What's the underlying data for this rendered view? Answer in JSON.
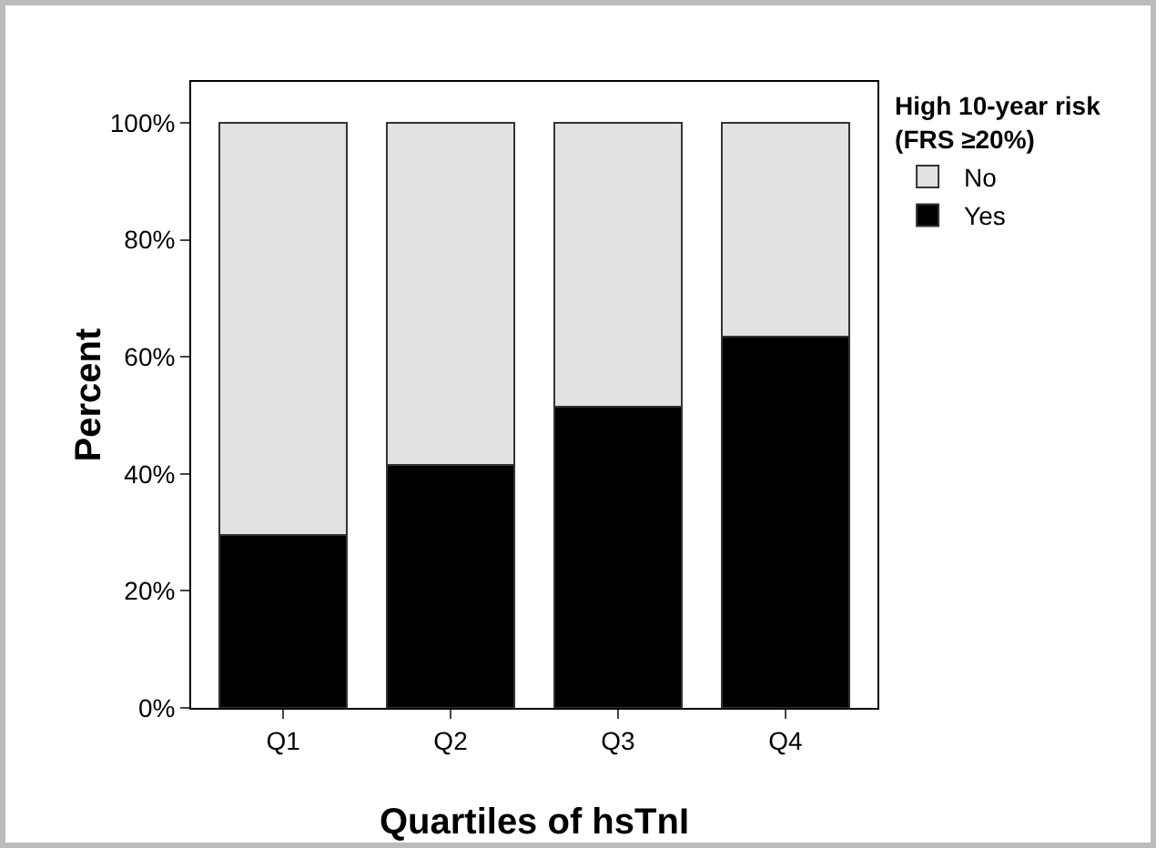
{
  "chart_data": {
    "type": "bar",
    "xlabel": "Quartiles of hsTnI",
    "ylabel": "Percent",
    "legend_title": "High 10-year risk (FRS ≥20%)",
    "categories": [
      "Q1",
      "Q2",
      "Q3",
      "Q4"
    ],
    "stacked": true,
    "series": [
      {
        "name": "Yes",
        "color": "#000000",
        "values": [
          29.5,
          41.5,
          51.5,
          63.5
        ]
      },
      {
        "name": "No",
        "color": "#e2e2e2",
        "values": [
          70.5,
          58.5,
          48.5,
          36.5
        ]
      }
    ],
    "ylim": [
      0,
      107
    ],
    "yticks": [
      {
        "value": 0,
        "label": "0%"
      },
      {
        "value": 20,
        "label": "20%"
      },
      {
        "value": 40,
        "label": "40%"
      },
      {
        "value": 60,
        "label": "60%"
      },
      {
        "value": 80,
        "label": "80%"
      },
      {
        "value": 100,
        "label": "100%"
      }
    ],
    "grid": false,
    "legend": "top right"
  }
}
